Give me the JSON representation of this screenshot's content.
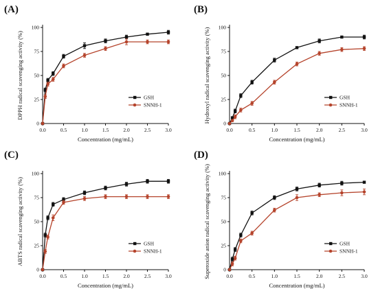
{
  "colors": {
    "axis": "#111111",
    "gsh": "#111111",
    "snnh": "#b5432b"
  },
  "chart_data": [
    {
      "panel_label": "(A)",
      "type": "line",
      "xlabel": "Concentration (mg/mL)",
      "ylabel": "DPPH radical scavenging activity (%)",
      "xlim": [
        0,
        3.0
      ],
      "ylim": [
        0,
        100
      ],
      "xticks": [
        "0.0",
        "0.5",
        "1.0",
        "1.5",
        "2.0",
        "2.5",
        "3.0"
      ],
      "yticks": [
        "0",
        "25",
        "50",
        "75",
        "100"
      ],
      "legend": "lower-right",
      "series": [
        {
          "name": "GSH",
          "color": "#111111",
          "marker": "square",
          "x": [
            0,
            0.0625,
            0.125,
            0.25,
            0.5,
            1.0,
            1.5,
            2.0,
            2.5,
            3.0
          ],
          "y": [
            0,
            35,
            45,
            52,
            70,
            81,
            86,
            90,
            93,
            95
          ],
          "err": [
            0,
            2,
            2,
            2,
            2,
            3,
            2,
            2,
            1,
            2
          ]
        },
        {
          "name": "SNNH-1",
          "color": "#b5432b",
          "marker": "circle",
          "x": [
            0,
            0.0625,
            0.125,
            0.25,
            0.5,
            1.0,
            1.5,
            2.0,
            2.5,
            3.0
          ],
          "y": [
            0,
            28,
            41,
            46,
            60,
            71,
            78,
            85,
            85,
            85
          ],
          "err": [
            0,
            2,
            2,
            2,
            2,
            2,
            2,
            3,
            2,
            2
          ]
        }
      ]
    },
    {
      "panel_label": "(B)",
      "type": "line",
      "xlabel": "Concentration (mg/mL)",
      "ylabel": "Hydroxyl radical scavenging activity (%)",
      "xlim": [
        0,
        3.0
      ],
      "ylim": [
        0,
        100
      ],
      "xticks": [
        "0.0",
        "0.5",
        "1.0",
        "1.5",
        "2.0",
        "2.5",
        "3.0"
      ],
      "yticks": [
        "0",
        "25",
        "50",
        "75",
        "100"
      ],
      "legend": "lower-right",
      "series": [
        {
          "name": "GSH",
          "color": "#111111",
          "marker": "square",
          "x": [
            0,
            0.0625,
            0.125,
            0.25,
            0.5,
            1.0,
            1.5,
            2.0,
            2.5,
            3.0
          ],
          "y": [
            0,
            6,
            13,
            29,
            43,
            66,
            79,
            86,
            90,
            90
          ],
          "err": [
            0,
            1,
            2,
            2,
            2,
            2,
            1,
            2,
            1,
            2
          ]
        },
        {
          "name": "SNNH-1",
          "color": "#b5432b",
          "marker": "circle",
          "x": [
            0,
            0.0625,
            0.125,
            0.25,
            0.5,
            1.0,
            1.5,
            2.0,
            2.5,
            3.0
          ],
          "y": [
            0,
            3,
            7,
            14,
            21,
            43,
            62,
            73,
            77,
            78
          ],
          "err": [
            0,
            1,
            2,
            2,
            2,
            2,
            2,
            2,
            2,
            2
          ]
        }
      ]
    },
    {
      "panel_label": "(C)",
      "type": "line",
      "xlabel": "Concentration (mg/mL)",
      "ylabel": "ABTS radical scavenging activity (%)",
      "xlim": [
        0,
        3.0
      ],
      "ylim": [
        0,
        100
      ],
      "xticks": [
        "0.0",
        "0.5",
        "1.0",
        "1.5",
        "2.0",
        "2.5",
        "3.0"
      ],
      "yticks": [
        "0",
        "25",
        "50",
        "75",
        "100"
      ],
      "legend": "lower-right",
      "series": [
        {
          "name": "GSH",
          "color": "#111111",
          "marker": "square",
          "x": [
            0,
            0.0625,
            0.125,
            0.25,
            0.5,
            1.0,
            1.5,
            2.0,
            2.5,
            3.0
          ],
          "y": [
            0,
            36,
            54,
            68,
            73,
            80,
            85,
            89,
            92,
            92
          ],
          "err": [
            0,
            2,
            2,
            2,
            2,
            2,
            2,
            2,
            2,
            2
          ]
        },
        {
          "name": "SNNH-1",
          "color": "#b5432b",
          "marker": "circle",
          "x": [
            0,
            0.0625,
            0.125,
            0.25,
            0.5,
            1.0,
            1.5,
            2.0,
            2.5,
            3.0
          ],
          "y": [
            0,
            19,
            34,
            54,
            70,
            74,
            76,
            76,
            76,
            76
          ],
          "err": [
            0,
            2,
            2,
            3,
            2,
            2,
            2,
            2,
            2,
            2
          ]
        }
      ]
    },
    {
      "panel_label": "(D)",
      "type": "line",
      "xlabel": "Concentration (mg/mL)",
      "ylabel": "Superoxide anion radical scavenging activity (%)",
      "xlim": [
        0,
        3.0
      ],
      "ylim": [
        0,
        100
      ],
      "xticks": [
        "0.0",
        "0.5",
        "1.0",
        "1.5",
        "2.0",
        "2.5",
        "3.0"
      ],
      "yticks": [
        "0",
        "25",
        "50",
        "75",
        "100"
      ],
      "legend": "lower-right",
      "series": [
        {
          "name": "GSH",
          "color": "#111111",
          "marker": "square",
          "x": [
            0,
            0.0625,
            0.125,
            0.25,
            0.5,
            1.0,
            1.5,
            2.0,
            2.5,
            3.0
          ],
          "y": [
            0,
            11,
            21,
            36,
            59,
            75,
            84,
            88,
            90,
            91
          ],
          "err": [
            0,
            2,
            2,
            2,
            2,
            2,
            2,
            2,
            2,
            1
          ]
        },
        {
          "name": "SNNH-1",
          "color": "#b5432b",
          "marker": "circle",
          "x": [
            0,
            0.0625,
            0.125,
            0.25,
            0.5,
            1.0,
            1.5,
            2.0,
            2.5,
            3.0
          ],
          "y": [
            0,
            6,
            12,
            30,
            38,
            62,
            75,
            78,
            80,
            81
          ],
          "err": [
            0,
            2,
            2,
            2,
            2,
            2,
            3,
            2,
            3,
            3
          ]
        }
      ]
    }
  ]
}
